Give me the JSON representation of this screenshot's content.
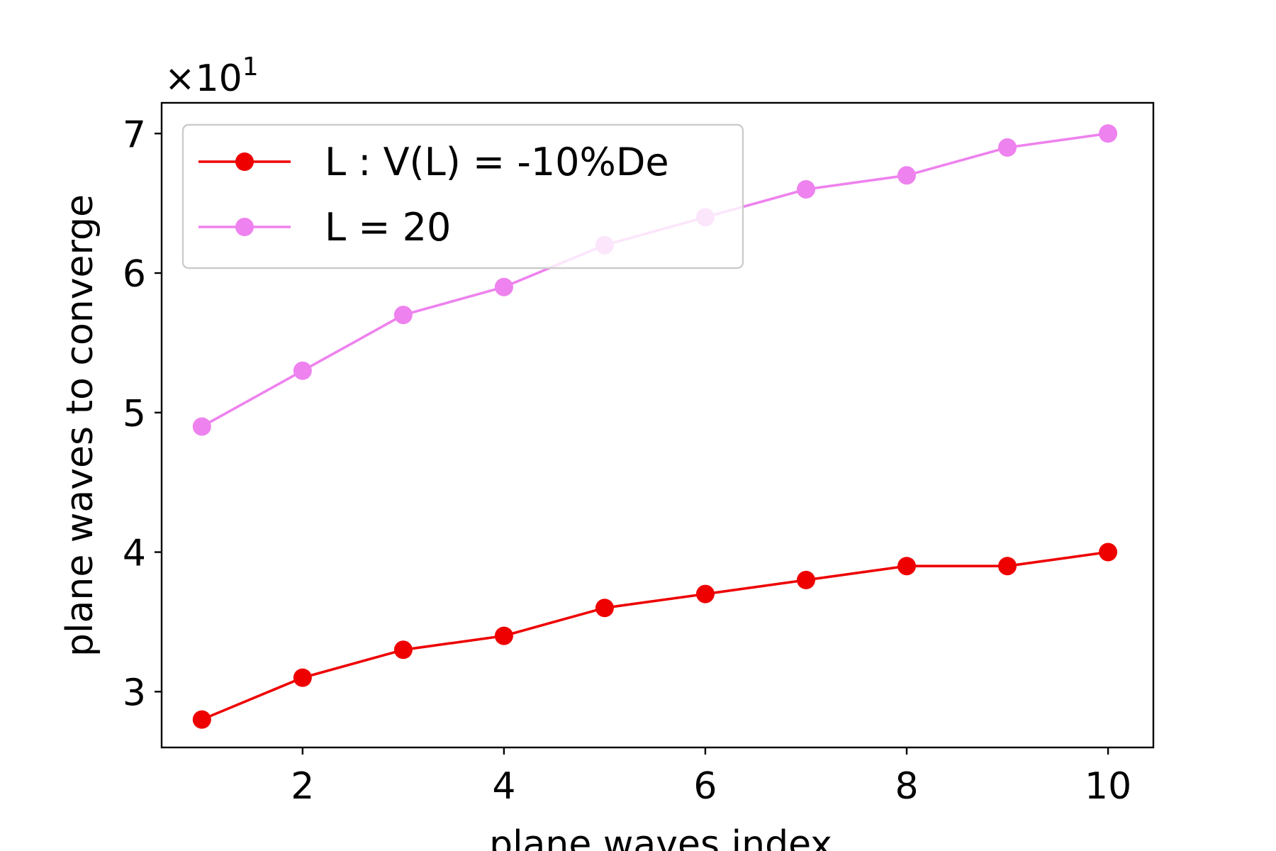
{
  "chart_data": {
    "type": "line",
    "title": "",
    "xlabel": "plane waves index",
    "ylabel": "plane waves to converge",
    "y_scale_label": "×10",
    "y_scale_exponent": "1",
    "xlim": [
      0.6,
      10.45
    ],
    "ylim": [
      2.6,
      7.22
    ],
    "x_ticks": [
      2,
      4,
      6,
      8,
      10
    ],
    "y_ticks": [
      3,
      4,
      5,
      6,
      7
    ],
    "grid": false,
    "legend_position": "top-left",
    "x": [
      1,
      2,
      3,
      4,
      5,
      6,
      7,
      8,
      9,
      10
    ],
    "series": [
      {
        "name": "L : V(L) = -10%De",
        "color": "#ee0000",
        "values": [
          2.8,
          3.1,
          3.3,
          3.4,
          3.6,
          3.7,
          3.8,
          3.9,
          3.9,
          4.0
        ]
      },
      {
        "name": "L = 20",
        "color": "#ee82ee",
        "values": [
          4.9,
          5.3,
          5.7,
          5.9,
          6.2,
          6.4,
          6.6,
          6.7,
          6.9,
          7.0
        ]
      }
    ]
  }
}
